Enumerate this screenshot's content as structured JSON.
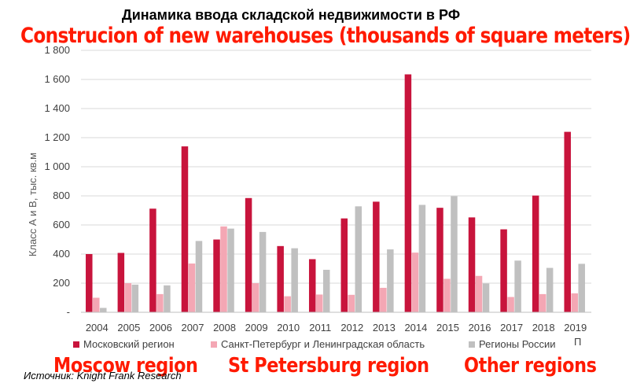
{
  "chart_data": {
    "type": "bar",
    "title": "Динамика ввода складской недвижимости в РФ",
    "subtitle": "Construcion of new warehouses (thousands of square meters)",
    "ylabel": "Класс А и В, тыс. кв.м",
    "ylim": [
      0,
      1800
    ],
    "ytick_labels": [
      "-",
      "200",
      "400",
      "600",
      "800",
      "1 000",
      "1 200",
      "1 400",
      "1 600",
      "1 800"
    ],
    "categories": [
      "2004",
      "2005",
      "2006",
      "2007",
      "2008",
      "2009",
      "2010",
      "2011",
      "2012",
      "2013",
      "2014",
      "2015",
      "2016",
      "2017",
      "2018",
      "2019"
    ],
    "series": [
      {
        "name": "Московский регион",
        "color": "#c8143c",
        "values": [
          400,
          408,
          712,
          1140,
          500,
          785,
          455,
          365,
          645,
          760,
          1635,
          718,
          652,
          570,
          802,
          1240
        ]
      },
      {
        "name": "Санкт-Петербург и Ленинградская область",
        "color": "#f4a7b4",
        "values": [
          100,
          200,
          125,
          335,
          590,
          200,
          110,
          122,
          120,
          168,
          410,
          230,
          250,
          105,
          125,
          130
        ]
      },
      {
        "name": "Регионы России",
        "color": "#c0c0c0",
        "values": [
          30,
          190,
          185,
          490,
          575,
          552,
          440,
          292,
          728,
          432,
          738,
          798,
          198,
          355,
          305,
          333
        ]
      }
    ],
    "grid": true,
    "legend": "bottom"
  },
  "annotations": {
    "moscow": "Moscow region",
    "spb": "St Petersburg region",
    "other": "Other regions"
  },
  "source": "Источник: Knight Frank Research",
  "stray_mark": "П"
}
